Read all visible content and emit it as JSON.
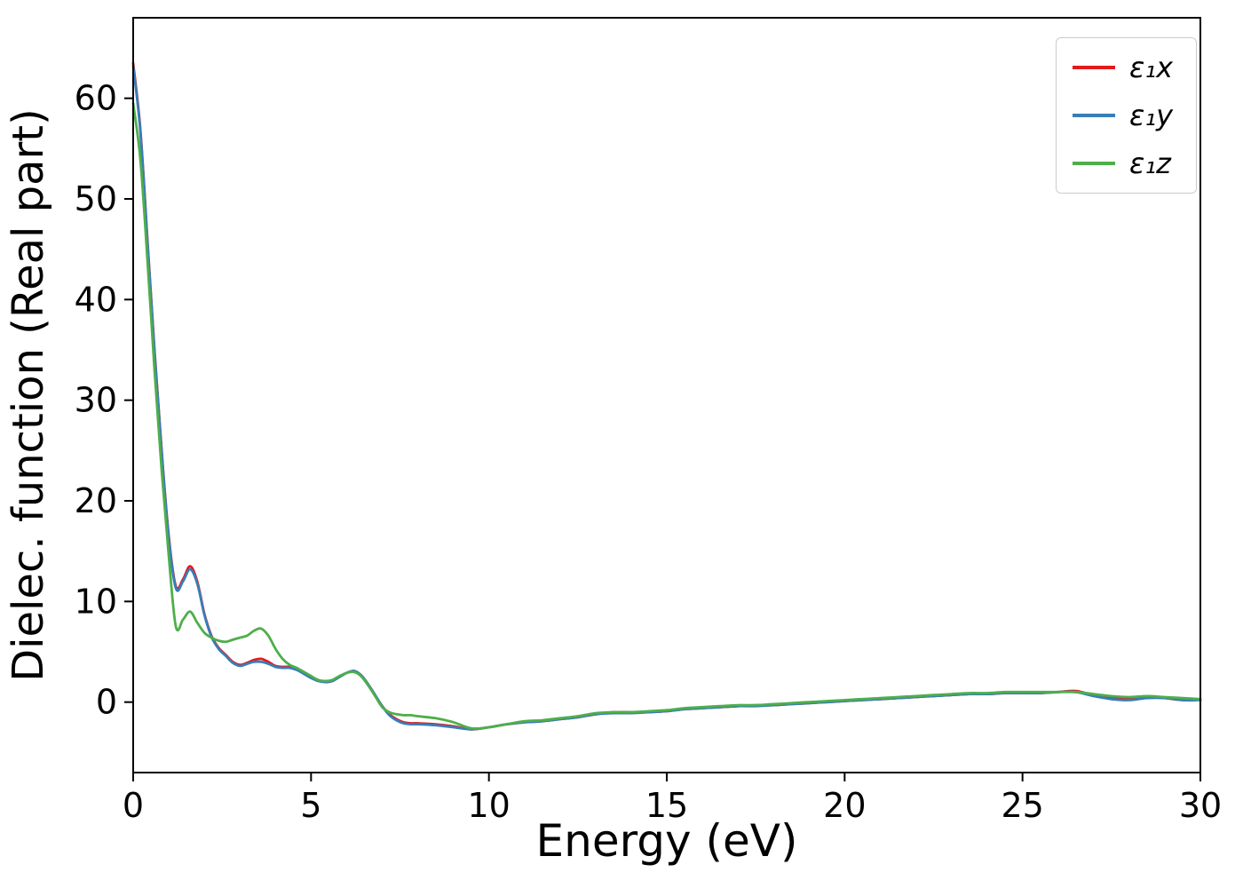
{
  "chart_data": {
    "type": "line",
    "title": "",
    "xlabel": "Energy (eV)",
    "ylabel": "Dielec. function (Real part)",
    "xlim": [
      0,
      30
    ],
    "ylim": [
      -7,
      68
    ],
    "xticks": [
      0,
      5,
      10,
      15,
      20,
      25,
      30
    ],
    "yticks": [
      0,
      10,
      20,
      30,
      40,
      50,
      60
    ],
    "grid": false,
    "legend_position": "upper right",
    "axis_color": "#000000",
    "x": [
      0,
      0.2,
      0.4,
      0.6,
      0.8,
      1,
      1.2,
      1.4,
      1.6,
      1.8,
      2,
      2.2,
      2.4,
      2.6,
      2.8,
      3,
      3.2,
      3.4,
      3.6,
      3.8,
      4,
      4.2,
      4.4,
      4.6,
      4.8,
      5,
      5.2,
      5.4,
      5.6,
      5.8,
      6,
      6.2,
      6.4,
      6.6,
      6.8,
      7,
      7.2,
      7.4,
      7.6,
      7.8,
      8,
      8.5,
      9,
      9.5,
      10,
      10.5,
      11,
      11.5,
      12,
      12.5,
      13,
      13.5,
      14,
      14.5,
      15,
      15.5,
      16,
      16.5,
      17,
      17.5,
      18,
      18.5,
      19,
      19.5,
      20,
      20.5,
      21,
      21.5,
      22,
      22.5,
      23,
      23.5,
      24,
      24.5,
      25,
      25.5,
      26,
      26.5,
      27,
      27.5,
      28,
      28.5,
      29,
      29.5,
      30
    ],
    "series": [
      {
        "name": "ε₁x",
        "color": "#e41a1c",
        "values": [
          63.5,
          57,
          46,
          35,
          25,
          16.5,
          11.5,
          12.2,
          13.5,
          12,
          8.8,
          6.6,
          5.4,
          4.7,
          4,
          3.7,
          3.9,
          4.2,
          4.3,
          4,
          3.6,
          3.5,
          3.5,
          3.3,
          2.9,
          2.5,
          2.2,
          2,
          2.1,
          2.5,
          2.9,
          3.1,
          2.7,
          1.8,
          0.7,
          -0.4,
          -1.2,
          -1.7,
          -2,
          -2.1,
          -2.1,
          -2.2,
          -2.4,
          -2.7,
          -2.5,
          -2.2,
          -2,
          -1.9,
          -1.7,
          -1.5,
          -1.2,
          -1,
          -1,
          -1,
          -0.9,
          -0.7,
          -0.6,
          -0.5,
          -0.4,
          -0.3,
          -0.3,
          -0.2,
          -0.1,
          0,
          0.1,
          0.2,
          0.3,
          0.4,
          0.5,
          0.6,
          0.7,
          0.8,
          0.8,
          0.9,
          0.9,
          0.9,
          1,
          1.1,
          0.7,
          0.4,
          0.3,
          0.5,
          0.4,
          0.2,
          0.3
        ]
      },
      {
        "name": "ε₁y",
        "color": "#377eb8",
        "values": [
          63.2,
          56.8,
          45.8,
          34.8,
          24.8,
          16.3,
          11.3,
          12,
          13.2,
          11.8,
          8.7,
          6.5,
          5.3,
          4.6,
          3.9,
          3.6,
          3.8,
          4,
          4,
          3.8,
          3.5,
          3.4,
          3.4,
          3.2,
          2.8,
          2.4,
          2.1,
          2,
          2.1,
          2.5,
          2.9,
          3.1,
          2.7,
          1.8,
          0.7,
          -0.4,
          -1.3,
          -1.8,
          -2.1,
          -2.2,
          -2.2,
          -2.3,
          -2.5,
          -2.7,
          -2.5,
          -2.2,
          -2,
          -1.9,
          -1.7,
          -1.5,
          -1.2,
          -1.1,
          -1.1,
          -1,
          -0.9,
          -0.7,
          -0.6,
          -0.5,
          -0.4,
          -0.4,
          -0.3,
          -0.2,
          -0.1,
          0,
          0.1,
          0.2,
          0.3,
          0.4,
          0.5,
          0.6,
          0.7,
          0.8,
          0.8,
          0.9,
          0.9,
          0.9,
          1,
          1,
          0.6,
          0.3,
          0.2,
          0.4,
          0.4,
          0.2,
          0.2
        ]
      },
      {
        "name": "ε₁z",
        "color": "#4daf4a",
        "values": [
          59.5,
          54,
          44,
          33,
          23,
          14.5,
          7.5,
          8.2,
          9,
          7.9,
          6.9,
          6.4,
          6.1,
          6,
          6.2,
          6.4,
          6.6,
          7.1,
          7.3,
          6.6,
          5.3,
          4.3,
          3.7,
          3.4,
          3,
          2.6,
          2.2,
          2.1,
          2.2,
          2.6,
          2.9,
          3,
          2.6,
          1.7,
          0.6,
          -0.5,
          -1,
          -1.2,
          -1.3,
          -1.3,
          -1.4,
          -1.6,
          -2,
          -2.6,
          -2.5,
          -2.2,
          -1.9,
          -1.8,
          -1.6,
          -1.4,
          -1.1,
          -1,
          -1,
          -0.9,
          -0.8,
          -0.6,
          -0.5,
          -0.4,
          -0.3,
          -0.3,
          -0.2,
          -0.1,
          0,
          0.1,
          0.2,
          0.3,
          0.4,
          0.5,
          0.6,
          0.7,
          0.8,
          0.9,
          0.9,
          1,
          1,
          1,
          1,
          1,
          0.8,
          0.6,
          0.5,
          0.6,
          0.5,
          0.4,
          0.3
        ]
      }
    ]
  }
}
